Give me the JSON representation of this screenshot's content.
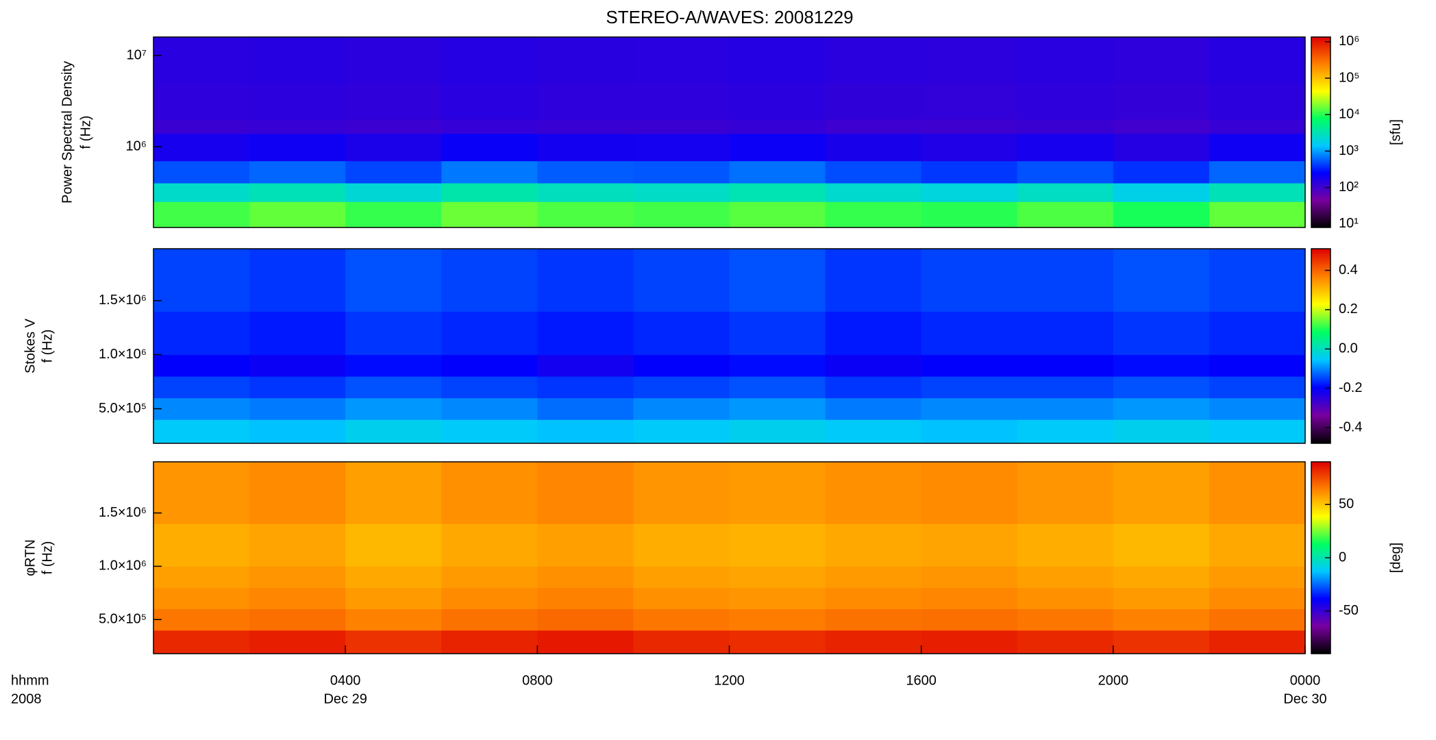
{
  "chart_data": [
    {
      "type": "heatmap",
      "title": "STEREO-A/WAVES: 20081229",
      "ylabel": [
        "Power Spectral Density",
        "f (Hz)"
      ],
      "clabel": "[sfu]",
      "log_y": true,
      "log_c": true,
      "xlim": [
        0,
        24
      ],
      "x_bins": [
        0,
        2,
        4,
        6,
        8,
        10,
        12,
        14,
        16,
        18,
        20,
        22,
        24
      ],
      "ylim": [
        130000,
        16000000
      ],
      "y_bins": [
        130000,
        250000,
        400000,
        700000,
        1400000,
        2000000,
        5000000,
        16000000
      ],
      "yticks": [
        {
          "value": 1000000,
          "label": "10⁶"
        },
        {
          "value": 10000000,
          "label": "10⁷"
        }
      ],
      "clim": [
        8,
        1350000
      ],
      "cticks": [
        {
          "value": 10,
          "label": "10¹"
        },
        {
          "value": 100,
          "label": "10²"
        },
        {
          "value": 1000,
          "label": "10³"
        },
        {
          "value": 10000,
          "label": "10⁴"
        },
        {
          "value": 100000,
          "label": "10⁵"
        },
        {
          "value": 1000000,
          "label": "10⁶"
        }
      ],
      "colormap": [
        "#000000",
        "#7a00a0",
        "#0000ff",
        "#00c8ff",
        "#00ff60",
        "#ffff00",
        "#ff8000",
        "#e00000"
      ],
      "z": [
        [
          12000,
          15000,
          11000,
          16000,
          13000,
          12000,
          14000,
          11000,
          10000,
          13000,
          9000,
          15000
        ],
        [
          2500,
          3000,
          2200,
          3500,
          2800,
          2600,
          3200,
          2400,
          2000,
          2700,
          1800,
          3000
        ],
        [
          500,
          600,
          450,
          700,
          550,
          520,
          650,
          480,
          400,
          500,
          380,
          600
        ],
        [
          180,
          200,
          170,
          220,
          190,
          185,
          210,
          175,
          160,
          180,
          150,
          200
        ],
        [
          110,
          115,
          108,
          120,
          112,
          110,
          118,
          106,
          104,
          110,
          100,
          115
        ],
        [
          130,
          135,
          128,
          140,
          132,
          130,
          138,
          126,
          124,
          130,
          122,
          135
        ],
        [
          140,
          145,
          138,
          150,
          142,
          140,
          148,
          136,
          134,
          140,
          132,
          145
        ]
      ]
    },
    {
      "type": "heatmap",
      "ylabel": [
        "Stokes V",
        "f (Hz)"
      ],
      "log_y": false,
      "log_c": false,
      "xlim": [
        0,
        24
      ],
      "x_bins": [
        0,
        2,
        4,
        6,
        8,
        10,
        12,
        14,
        16,
        18,
        20,
        22,
        24
      ],
      "ylim": [
        180000,
        1980000
      ],
      "y_bins": [
        180000,
        400000,
        600000,
        800000,
        1000000,
        1400000,
        1980000
      ],
      "yticks": [
        {
          "value": 500000,
          "label": "5.0×10⁵"
        },
        {
          "value": 1000000,
          "label": "1.0×10⁶"
        },
        {
          "value": 1500000,
          "label": "1.5×10⁶"
        }
      ],
      "clim": [
        -0.48,
        0.51
      ],
      "cticks": [
        -0.4,
        -0.2,
        {
          "value": 0,
          "label": "0.0"
        },
        0.2,
        0.4
      ],
      "colormap": [
        "#000000",
        "#7a00a0",
        "#0000ff",
        "#00c8ff",
        "#00ff60",
        "#ffff00",
        "#ff8000",
        "#e00000"
      ],
      "z": [
        [
          -0.05,
          -0.06,
          -0.04,
          -0.05,
          -0.06,
          -0.05,
          -0.04,
          -0.05,
          -0.06,
          -0.05,
          -0.04,
          -0.05
        ],
        [
          -0.1,
          -0.11,
          -0.09,
          -0.1,
          -0.12,
          -0.1,
          -0.09,
          -0.11,
          -0.1,
          -0.1,
          -0.09,
          -0.1
        ],
        [
          -0.15,
          -0.16,
          -0.14,
          -0.15,
          -0.16,
          -0.15,
          -0.14,
          -0.16,
          -0.15,
          -0.15,
          -0.14,
          -0.15
        ],
        [
          -0.2,
          -0.21,
          -0.19,
          -0.2,
          -0.22,
          -0.2,
          -0.19,
          -0.21,
          -0.2,
          -0.2,
          -0.19,
          -0.2
        ],
        [
          -0.17,
          -0.18,
          -0.16,
          -0.17,
          -0.18,
          -0.17,
          -0.16,
          -0.18,
          -0.17,
          -0.17,
          -0.16,
          -0.17
        ],
        [
          -0.15,
          -0.16,
          -0.14,
          -0.15,
          -0.16,
          -0.15,
          -0.14,
          -0.16,
          -0.15,
          -0.15,
          -0.14,
          -0.15
        ]
      ]
    },
    {
      "type": "heatmap",
      "ylabel": [
        "φRTN",
        "f (Hz)"
      ],
      "clabel": "[deg]",
      "log_y": false,
      "log_c": false,
      "xlim": [
        0,
        24
      ],
      "x_bins": [
        0,
        2,
        4,
        6,
        8,
        10,
        12,
        14,
        16,
        18,
        20,
        22,
        24
      ],
      "ylim": [
        180000,
        1980000
      ],
      "y_bins": [
        180000,
        400000,
        600000,
        800000,
        1000000,
        1400000,
        1980000
      ],
      "yticks": [
        {
          "value": 500000,
          "label": "5.0×10⁵"
        },
        {
          "value": 1000000,
          "label": "1.0×10⁶"
        },
        {
          "value": 1500000,
          "label": "1.5×10⁶"
        }
      ],
      "clim": [
        -90,
        90
      ],
      "cticks": [
        -50,
        0,
        50
      ],
      "colormap": [
        "#000000",
        "#7a00a0",
        "#0000ff",
        "#00c8ff",
        "#00ff60",
        "#ffff00",
        "#ff8000",
        "#e00000"
      ],
      "xticks": [
        {
          "value": 4,
          "label": "0400"
        },
        {
          "value": 8,
          "label": "0800"
        },
        {
          "value": 12,
          "label": "1200"
        },
        {
          "value": 16,
          "label": "1600"
        },
        {
          "value": 20,
          "label": "2000"
        },
        {
          "value": 24,
          "label": "0000"
        }
      ],
      "xtick_dates": [
        {
          "value": 4,
          "label": "Dec 29"
        },
        {
          "value": 24,
          "label": "Dec 30"
        }
      ],
      "xlabel": [
        "hhmm",
        "2008"
      ],
      "z": [
        [
          82,
          84,
          80,
          83,
          85,
          82,
          81,
          83,
          84,
          82,
          80,
          83
        ],
        [
          66,
          68,
          64,
          67,
          69,
          66,
          65,
          67,
          68,
          66,
          64,
          67
        ],
        [
          61,
          63,
          59,
          62,
          64,
          61,
          60,
          62,
          63,
          61,
          59,
          62
        ],
        [
          58,
          60,
          56,
          59,
          61,
          58,
          57,
          59,
          60,
          58,
          56,
          59
        ],
        [
          55,
          57,
          53,
          56,
          58,
          55,
          54,
          56,
          57,
          55,
          53,
          56
        ],
        [
          60,
          62,
          58,
          61,
          63,
          60,
          59,
          61,
          62,
          60,
          58,
          61
        ]
      ]
    }
  ]
}
